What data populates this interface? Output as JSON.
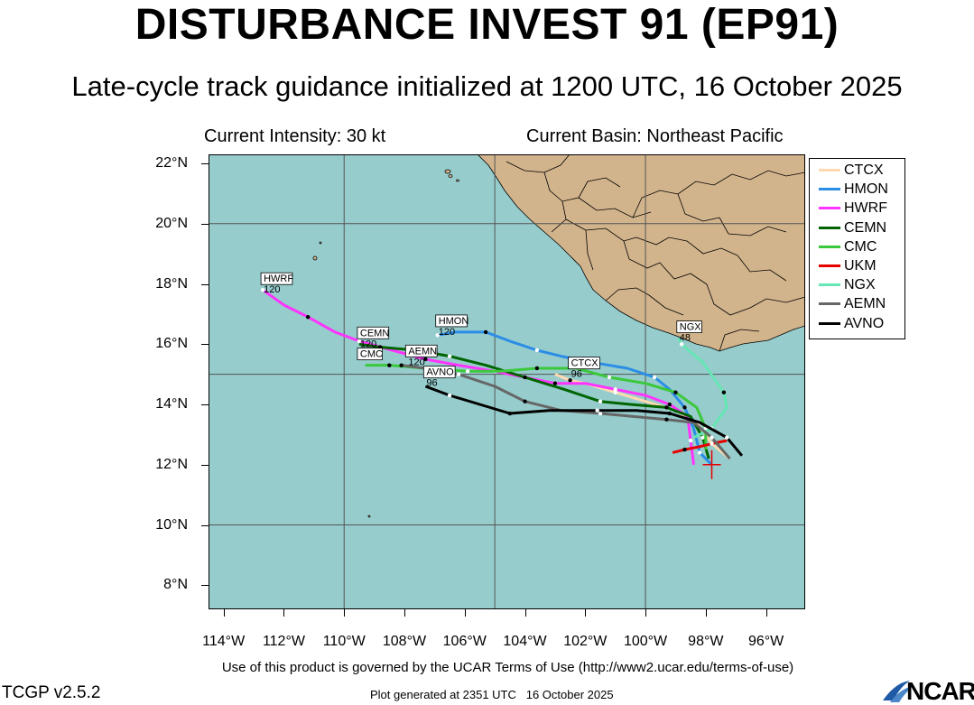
{
  "header": {
    "title": "DISTURBANCE INVEST 91 (EP91)",
    "subtitle": "Late-cycle track guidance initialized at 1200 UTC, 16 October 2025",
    "current_intensity": "Current Intensity: 30 kt",
    "current_basin": "Current Basin: Northeast Pacific"
  },
  "axes": {
    "lat_labels": [
      "22°N",
      "20°N",
      "18°N",
      "16°N",
      "14°N",
      "12°N",
      "10°N",
      "8°N"
    ],
    "lon_labels": [
      "114°W",
      "112°W",
      "110°W",
      "108°W",
      "106°W",
      "104°W",
      "102°W",
      "100°W",
      "98°W",
      "96°W"
    ],
    "lon_range": [
      -114.5,
      -94.7
    ],
    "lat_range": [
      7.2,
      22.3
    ]
  },
  "colors": {
    "ocean": "#96cccc",
    "land": "#d2b48c",
    "CTCX": "#ffdab0",
    "HMON": "#2b8de6",
    "HWRF": "#ff33ff",
    "CEMN": "#006400",
    "CMC": "#3cc83c",
    "UKM": "#e60000",
    "NGX": "#66e6b4",
    "AEMN": "#666666",
    "AVNO": "#000000"
  },
  "legend": [
    "CTCX",
    "HMON",
    "HWRF",
    "CEMN",
    "CMC",
    "UKM",
    "NGX",
    "AEMN",
    "AVNO"
  ],
  "map_labels": [
    {
      "text": "HWRF",
      "hours": "120"
    },
    {
      "text": "HMON",
      "hours": "120"
    },
    {
      "text": "CEMN",
      "hours": "120"
    },
    {
      "text": "CMC",
      "hours": ""
    },
    {
      "text": "AEMN",
      "hours": "120"
    },
    {
      "text": "AVNO",
      "hours": "96"
    },
    {
      "text": "CTCX",
      "hours": "96"
    },
    {
      "text": "NGX",
      "hours": "48"
    }
  ],
  "footer": {
    "terms": "Use of this product is governed by the UCAR Terms of Use (http://www2.ucar.edu/terms-of-use)",
    "version": "TCGP v2.5.2",
    "generated": "Plot generated at 2351 UTC   16 October 2025",
    "logo": "NCAR"
  },
  "tracks": {
    "CTCX": [
      [
        -97.2,
        12.2
      ],
      [
        -97.8,
        12.7
      ],
      [
        -98.3,
        13.4
      ],
      [
        -99.0,
        13.8
      ],
      [
        -100.0,
        14.1
      ],
      [
        -101.0,
        14.4
      ],
      [
        -102.0,
        14.7
      ],
      [
        -102.5,
        14.8
      ],
      [
        -103.0,
        15.0
      ]
    ],
    "HMON": [
      [
        -97.8,
        12.0
      ],
      [
        -98.2,
        12.4
      ],
      [
        -98.4,
        13.2
      ],
      [
        -98.7,
        13.9
      ],
      [
        -99.2,
        14.5
      ],
      [
        -99.7,
        14.9
      ],
      [
        -100.6,
        15.2
      ],
      [
        -101.8,
        15.4
      ],
      [
        -102.8,
        15.6
      ],
      [
        -103.6,
        15.8
      ],
      [
        -104.5,
        16.1
      ],
      [
        -105.3,
        16.4
      ],
      [
        -106.3,
        16.4
      ],
      [
        -106.9,
        16.3
      ]
    ],
    "HWRF": [
      [
        -98.4,
        12.0
      ],
      [
        -98.5,
        12.8
      ],
      [
        -98.6,
        13.6
      ],
      [
        -99.2,
        14.0
      ],
      [
        -100.0,
        14.3
      ],
      [
        -101.0,
        14.5
      ],
      [
        -102.0,
        14.7
      ],
      [
        -103.0,
        14.7
      ],
      [
        -104.0,
        14.9
      ],
      [
        -105.0,
        15.1
      ],
      [
        -106.2,
        15.3
      ],
      [
        -107.3,
        15.5
      ],
      [
        -108.4,
        15.8
      ],
      [
        -109.5,
        16.1
      ],
      [
        -110.3,
        16.4
      ],
      [
        -111.2,
        16.9
      ],
      [
        -112.0,
        17.3
      ],
      [
        -112.7,
        17.8
      ]
    ],
    "CEMN": [
      [
        -97.9,
        12.2
      ],
      [
        -98.1,
        12.9
      ],
      [
        -98.5,
        13.6
      ],
      [
        -99.3,
        13.9
      ],
      [
        -100.5,
        14.0
      ],
      [
        -101.5,
        14.1
      ],
      [
        -102.7,
        14.5
      ],
      [
        -104.0,
        14.9
      ],
      [
        -105.3,
        15.3
      ],
      [
        -106.5,
        15.6
      ],
      [
        -107.6,
        15.8
      ],
      [
        -108.8,
        15.9
      ],
      [
        -109.5,
        16.0
      ]
    ],
    "CMC": [
      [
        -98.0,
        12.5
      ],
      [
        -98.0,
        13.2
      ],
      [
        -98.3,
        13.9
      ],
      [
        -99.0,
        14.4
      ],
      [
        -100.0,
        14.7
      ],
      [
        -101.2,
        14.9
      ],
      [
        -102.3,
        15.2
      ],
      [
        -103.6,
        15.2
      ],
      [
        -104.8,
        15.1
      ],
      [
        -105.9,
        15.1
      ],
      [
        -107.3,
        15.2
      ],
      [
        -108.5,
        15.3
      ],
      [
        -109.3,
        15.3
      ]
    ],
    "UKM": [
      [
        -97.3,
        12.8
      ],
      [
        -97.8,
        12.7
      ],
      [
        -98.2,
        12.6
      ],
      [
        -98.7,
        12.5
      ],
      [
        -99.1,
        12.4
      ]
    ],
    "NGX": [
      [
        -98.4,
        12.9
      ],
      [
        -97.8,
        13.2
      ],
      [
        -97.3,
        13.9
      ],
      [
        -97.4,
        14.4
      ],
      [
        -98.1,
        15.4
      ],
      [
        -98.8,
        16.0
      ],
      [
        -98.9,
        16.2
      ]
    ],
    "AEMN": [
      [
        -97.2,
        12.2
      ],
      [
        -97.8,
        12.9
      ],
      [
        -98.4,
        13.4
      ],
      [
        -99.3,
        13.5
      ],
      [
        -100.4,
        13.6
      ],
      [
        -101.5,
        13.7
      ],
      [
        -102.8,
        13.8
      ],
      [
        -104.0,
        14.1
      ],
      [
        -105.0,
        14.6
      ],
      [
        -106.2,
        15.0
      ],
      [
        -107.3,
        15.2
      ],
      [
        -108.1,
        15.3
      ]
    ],
    "AVNO": [
      [
        -96.8,
        12.3
      ],
      [
        -97.3,
        12.9
      ],
      [
        -98.2,
        13.4
      ],
      [
        -99.2,
        13.7
      ],
      [
        -100.3,
        13.8
      ],
      [
        -101.6,
        13.8
      ],
      [
        -103.2,
        13.8
      ],
      [
        -104.5,
        13.7
      ],
      [
        -105.5,
        14.0
      ],
      [
        -106.5,
        14.3
      ],
      [
        -107.3,
        14.6
      ]
    ]
  }
}
